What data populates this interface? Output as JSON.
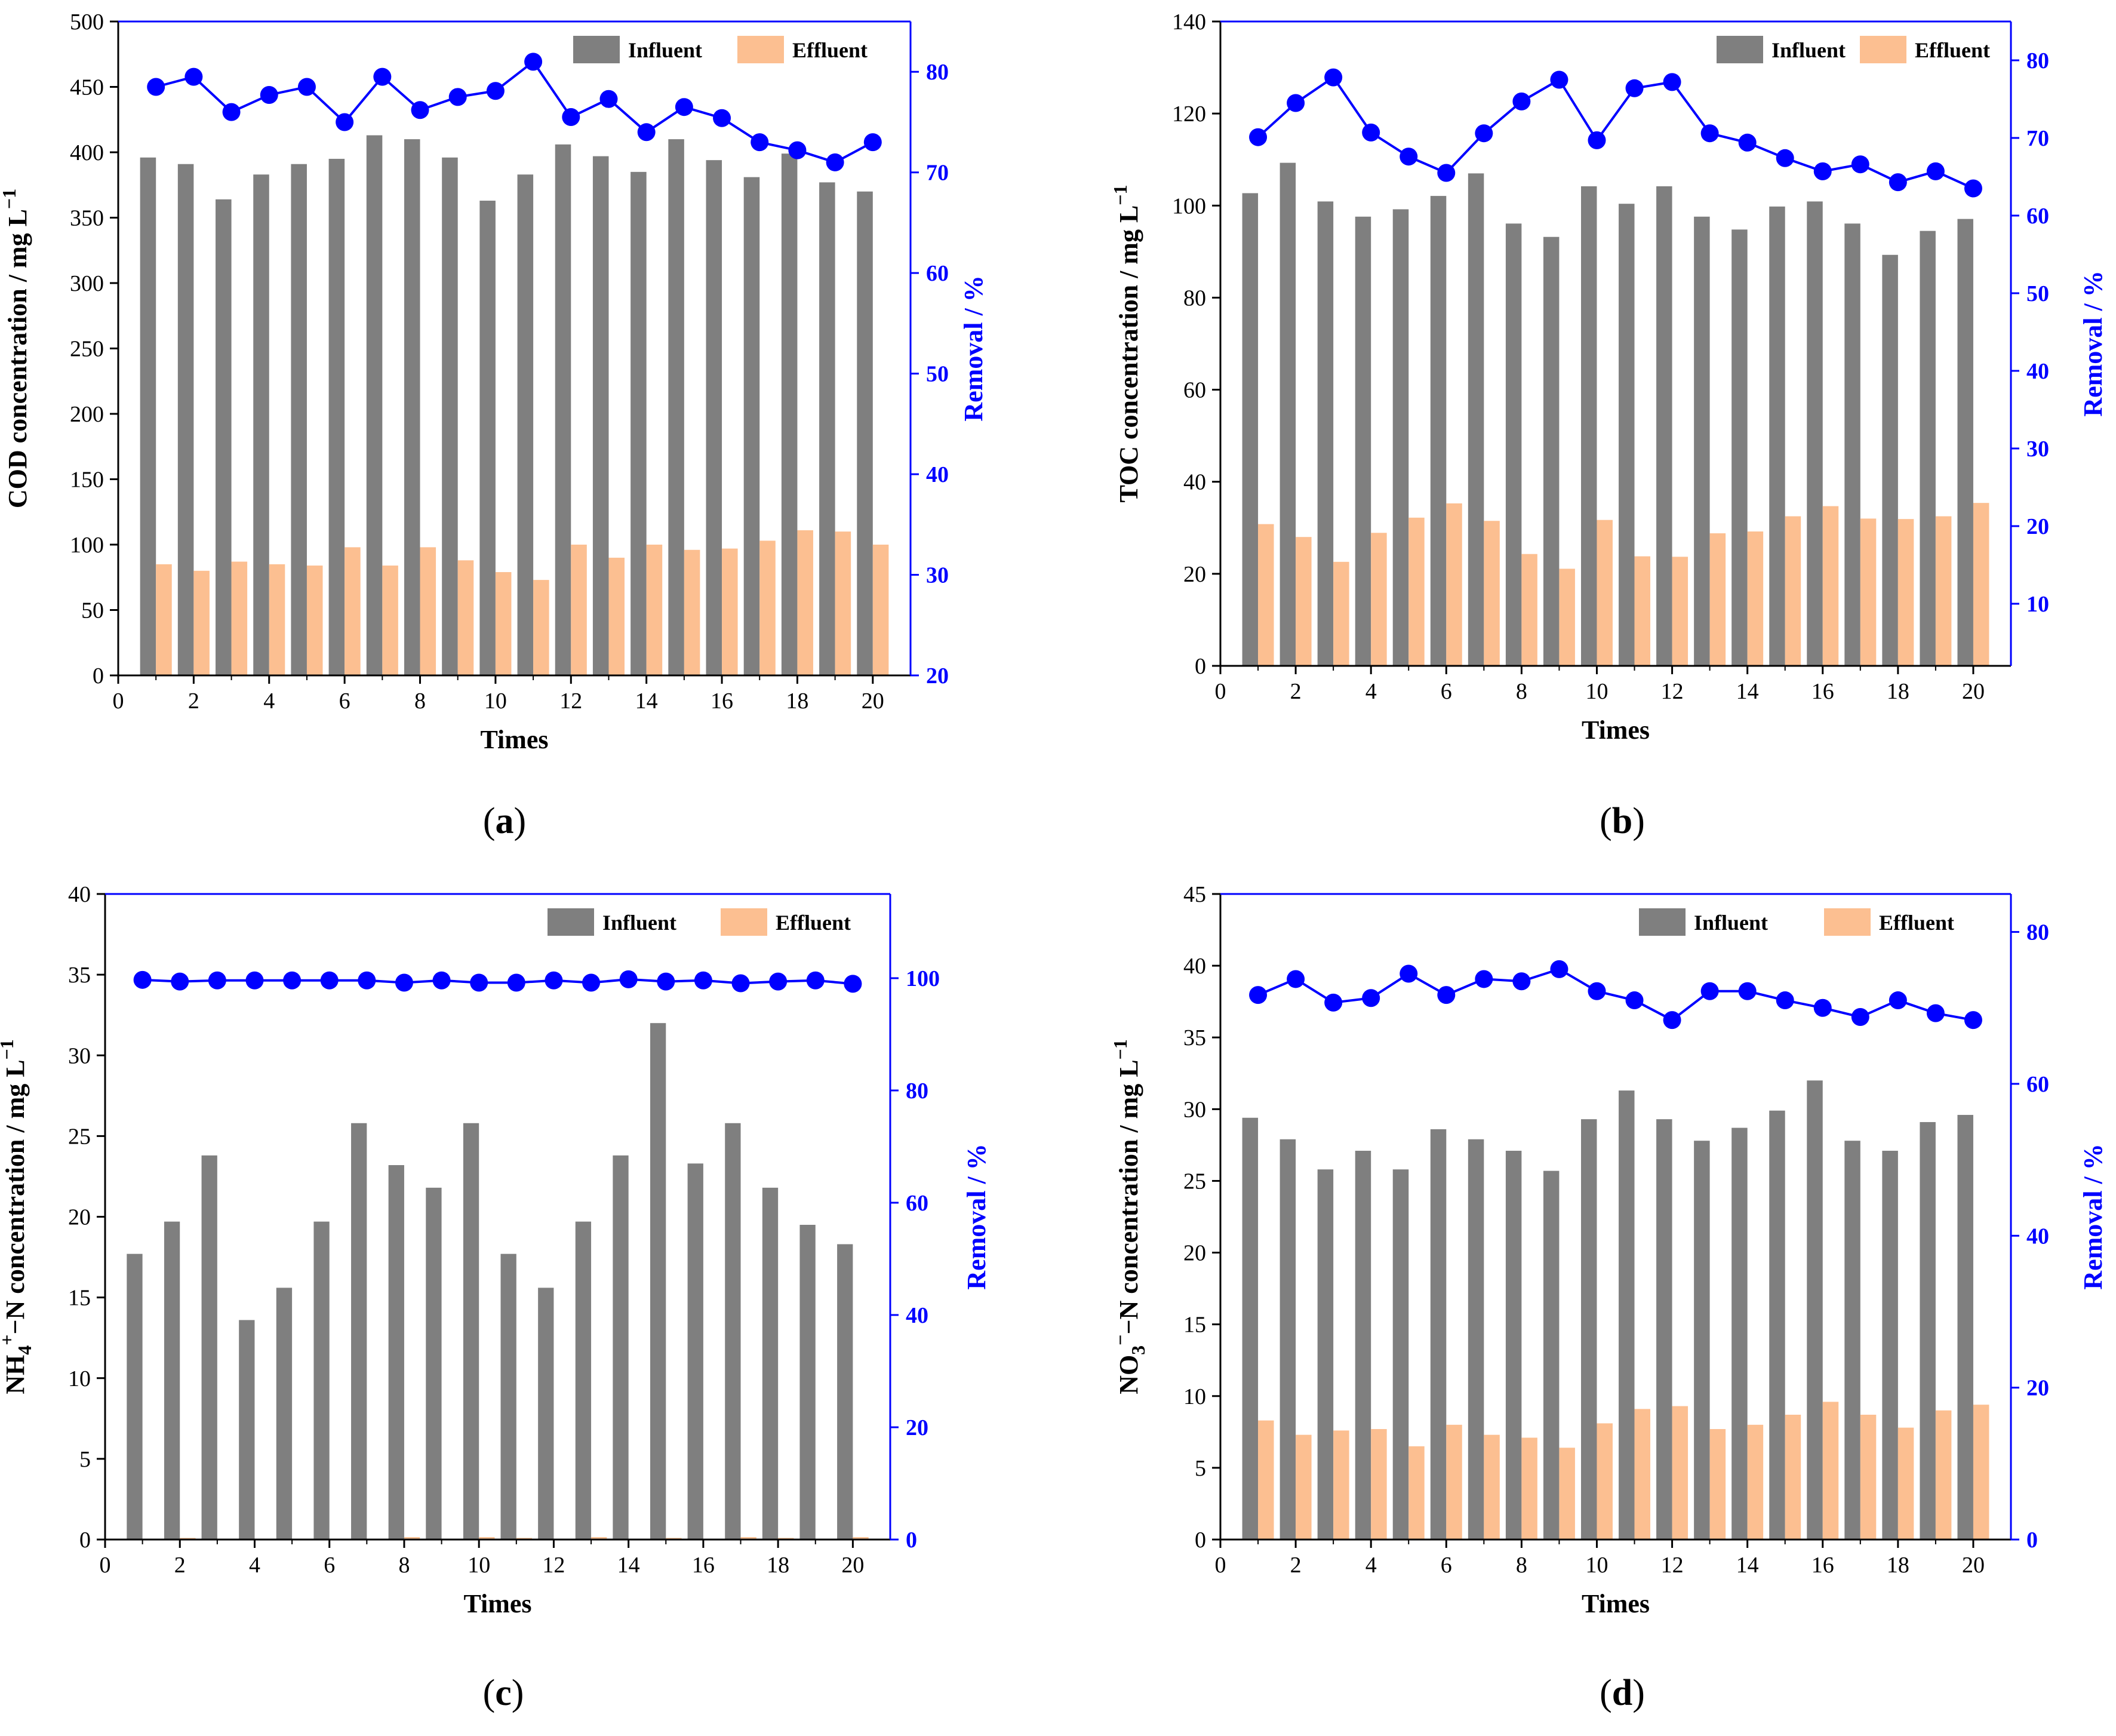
{
  "colors": {
    "influent": "#7f7f7f",
    "effluent": "#fcbf91",
    "removal": "#0000ff",
    "axis": "#000000",
    "right_axis": "#0000ff"
  },
  "chart_data": [
    {
      "type": "bar",
      "panel": "a",
      "panel_label": "a",
      "xlabel": "Times",
      "ylabel": "COD concentration / mg L",
      "ylabel_sup": "−1",
      "y2label": "Removal / %",
      "xlim": [
        0,
        21
      ],
      "xticks": [
        0,
        2,
        4,
        6,
        8,
        10,
        12,
        14,
        16,
        18,
        20
      ],
      "ylim": [
        0,
        500
      ],
      "yticks": [
        0,
        50,
        100,
        150,
        200,
        250,
        300,
        350,
        400,
        450,
        500
      ],
      "y2lim": [
        20,
        85
      ],
      "y2ticks": [
        20,
        30,
        40,
        50,
        60,
        70,
        80
      ],
      "legend": [
        "Influent",
        "Effluent"
      ],
      "x": [
        1,
        2,
        3,
        4,
        5,
        6,
        7,
        8,
        9,
        10,
        11,
        12,
        13,
        14,
        15,
        16,
        17,
        18,
        19,
        20
      ],
      "influent": [
        396,
        391,
        364,
        383,
        391,
        395,
        413,
        410,
        396,
        363,
        383,
        406,
        397,
        385,
        410,
        394,
        381,
        399,
        377,
        370
      ],
      "effluent": [
        85,
        80,
        87,
        85,
        84,
        98,
        84,
        98,
        88,
        79,
        73,
        100,
        90,
        100,
        96,
        97,
        103,
        111,
        110,
        100
      ],
      "removal": [
        78.5,
        79.5,
        76.0,
        77.7,
        78.5,
        75.0,
        79.5,
        76.2,
        77.5,
        78.1,
        81.0,
        75.5,
        77.3,
        74.0,
        76.5,
        75.4,
        73.0,
        72.2,
        71.0,
        73.0
      ]
    },
    {
      "type": "bar",
      "panel": "b",
      "panel_label": "b",
      "xlabel": "Times",
      "ylabel": "TOC concentration / mg L",
      "ylabel_sup": "−1",
      "y2label": "Removal / %",
      "xlim": [
        0,
        21
      ],
      "xticks": [
        0,
        2,
        4,
        6,
        8,
        10,
        12,
        14,
        16,
        18,
        20
      ],
      "ylim": [
        0,
        140
      ],
      "yticks": [
        0,
        20,
        40,
        60,
        80,
        100,
        120,
        140
      ],
      "y2lim": [
        2,
        85
      ],
      "y2ticks": [
        10,
        20,
        30,
        40,
        50,
        60,
        70,
        80
      ],
      "legend": [
        "Influent",
        "Effluent"
      ],
      "x": [
        1,
        2,
        3,
        4,
        5,
        6,
        7,
        8,
        9,
        10,
        11,
        12,
        13,
        14,
        15,
        16,
        17,
        18,
        19,
        20
      ],
      "influent": [
        102.7,
        109.3,
        100.9,
        97.6,
        99.2,
        102.1,
        107.0,
        96.1,
        93.2,
        104.2,
        100.4,
        104.2,
        97.6,
        94.8,
        99.8,
        100.9,
        96.1,
        89.3,
        94.5,
        97.1
      ],
      "effluent": [
        30.8,
        28.0,
        22.6,
        28.9,
        32.2,
        35.3,
        31.5,
        24.3,
        21.1,
        31.7,
        23.8,
        23.7,
        28.8,
        29.2,
        32.5,
        34.7,
        32.0,
        31.9,
        32.5,
        35.4
      ],
      "removal": [
        70.1,
        74.5,
        77.8,
        70.7,
        67.6,
        65.5,
        70.6,
        74.7,
        77.5,
        69.7,
        76.4,
        77.2,
        70.6,
        69.4,
        67.4,
        65.7,
        66.6,
        64.3,
        65.7,
        63.5
      ]
    },
    {
      "type": "bar",
      "panel": "c",
      "panel_label": "c",
      "xlabel": "Times",
      "ylabel_main": "NH",
      "ylabel_sub": "4",
      "ylabel_sup2": "+",
      "ylabel_rest": "−N concentration / mg L",
      "ylabel_sup": "−1",
      "y2label": "Removal / %",
      "xlim": [
        0,
        21
      ],
      "xticks": [
        0,
        2,
        4,
        6,
        8,
        10,
        12,
        14,
        16,
        18,
        20
      ],
      "ylim": [
        0,
        40
      ],
      "yticks": [
        0,
        5,
        10,
        15,
        20,
        25,
        30,
        35,
        40
      ],
      "y2lim": [
        0,
        115
      ],
      "y2ticks": [
        0,
        20,
        40,
        60,
        80,
        100
      ],
      "legend": [
        "Influent",
        "Effluent"
      ],
      "x": [
        1,
        2,
        3,
        4,
        5,
        6,
        7,
        8,
        9,
        10,
        11,
        12,
        13,
        14,
        15,
        16,
        17,
        18,
        19,
        20
      ],
      "influent": [
        17.7,
        19.7,
        23.8,
        13.6,
        15.6,
        19.7,
        25.8,
        23.2,
        21.8,
        25.8,
        17.7,
        15.6,
        19.7,
        23.8,
        32.0,
        23.3,
        25.8,
        21.8,
        19.5,
        18.3
      ],
      "effluent": [
        0.05,
        0.1,
        0.05,
        0.05,
        0.05,
        0.05,
        0.05,
        0.15,
        0.05,
        0.15,
        0.1,
        0.05,
        0.15,
        0.05,
        0.1,
        0.05,
        0.15,
        0.1,
        0.05,
        0.15
      ],
      "removal": [
        99.7,
        99.4,
        99.6,
        99.6,
        99.6,
        99.6,
        99.6,
        99.2,
        99.6,
        99.2,
        99.2,
        99.6,
        99.2,
        99.8,
        99.4,
        99.6,
        99.1,
        99.4,
        99.6,
        99.0
      ]
    },
    {
      "type": "bar",
      "panel": "d",
      "panel_label": "d",
      "xlabel": "Times",
      "ylabel_main": "NO",
      "ylabel_sub": "3",
      "ylabel_sup2": "−",
      "ylabel_rest": "−N concentration / mg L",
      "ylabel_sup": "−1",
      "y2label": "Removal / %",
      "xlim": [
        0,
        21
      ],
      "xticks": [
        0,
        2,
        4,
        6,
        8,
        10,
        12,
        14,
        16,
        18,
        20
      ],
      "ylim": [
        0,
        45
      ],
      "yticks": [
        0,
        5,
        10,
        15,
        20,
        25,
        30,
        35,
        40,
        45
      ],
      "y2lim": [
        0,
        85
      ],
      "y2ticks": [
        0,
        20,
        40,
        60,
        80
      ],
      "legend": [
        "Influent",
        "Effluent"
      ],
      "x": [
        1,
        2,
        3,
        4,
        5,
        6,
        7,
        8,
        9,
        10,
        11,
        12,
        13,
        14,
        15,
        16,
        17,
        18,
        19,
        20
      ],
      "influent": [
        29.4,
        27.9,
        25.8,
        27.1,
        25.8,
        28.6,
        27.9,
        27.1,
        25.7,
        29.3,
        31.3,
        29.3,
        27.8,
        28.7,
        29.9,
        32.0,
        27.8,
        27.1,
        29.1,
        29.6
      ],
      "effluent": [
        8.3,
        7.3,
        7.6,
        7.7,
        6.5,
        8.0,
        7.3,
        7.1,
        6.4,
        8.1,
        9.1,
        9.3,
        7.7,
        8.0,
        8.7,
        9.6,
        8.7,
        7.8,
        9.0,
        9.4
      ],
      "removal": [
        71.7,
        73.8,
        70.7,
        71.3,
        74.5,
        71.7,
        73.8,
        73.5,
        75.1,
        72.2,
        71.0,
        68.4,
        72.2,
        72.2,
        71.0,
        70.0,
        68.8,
        71.0,
        69.3,
        68.4
      ]
    }
  ]
}
